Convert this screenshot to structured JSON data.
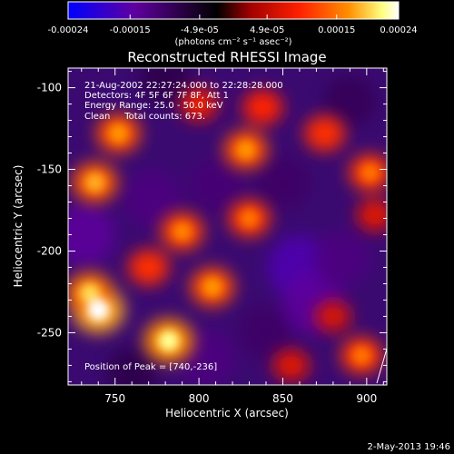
{
  "colorbar": {
    "tick_labels": [
      "-0.00024",
      "-0.00015",
      "-4.9e-05",
      "4.9e-05",
      "0.00015",
      "0.00024"
    ],
    "tick_values": [
      -0.00024,
      -0.00015,
      -4.9e-05,
      4.9e-05,
      0.00015,
      0.00024
    ],
    "range": [
      -0.00024,
      0.00024
    ],
    "units": "(photons cm⁻² s⁻¹ asec⁻²)",
    "colormap": [
      "#0000ff",
      "#6000a0",
      "#000000",
      "#a00000",
      "#ff2000",
      "#ff9000",
      "#ffff80",
      "#ffffff"
    ]
  },
  "chart_data": {
    "type": "heatmap",
    "title": "Reconstructed RHESSI Image",
    "xlabel": "Heliocentric X (arcsec)",
    "ylabel": "Heliocentric Y (arcsec)",
    "xlim": [
      722,
      912
    ],
    "ylim": [
      -282,
      -88
    ],
    "x_ticks": [
      750,
      800,
      850,
      900
    ],
    "x_tick_labels": [
      "750",
      "800",
      "850",
      "900"
    ],
    "y_ticks": [
      -100,
      -150,
      -200,
      -250
    ],
    "y_tick_labels": [
      "-100",
      "-150",
      "-200",
      "-250"
    ],
    "annotations": [
      "21-Aug-2002 22:27:24.000 to 22:28:28.000",
      "Detectors: 4F 5F 6F 7F 8F, Att 1",
      "Energy Range: 25.0 - 50.0 keV",
      "Clean     Total counts: 673."
    ],
    "peak_label": "Position of Peak = [740,-236]",
    "peak_position": [
      740,
      -236
    ],
    "bright_sources": [
      {
        "x": 740,
        "y": -236,
        "value": 0.00024
      },
      {
        "x": 735,
        "y": -226,
        "value": 0.0002
      },
      {
        "x": 782,
        "y": -255,
        "value": 0.00022
      },
      {
        "x": 738,
        "y": -158,
        "value": 0.00018
      },
      {
        "x": 752,
        "y": -128,
        "value": 0.00017
      },
      {
        "x": 790,
        "y": -188,
        "value": 0.00016
      },
      {
        "x": 808,
        "y": -222,
        "value": 0.00017
      },
      {
        "x": 830,
        "y": -180,
        "value": 0.00015
      },
      {
        "x": 828,
        "y": -138,
        "value": 0.00017
      },
      {
        "x": 838,
        "y": -112,
        "value": 0.00013
      },
      {
        "x": 875,
        "y": -128,
        "value": 0.00014
      },
      {
        "x": 902,
        "y": -152,
        "value": 0.00015
      },
      {
        "x": 897,
        "y": -264,
        "value": 0.00015
      },
      {
        "x": 905,
        "y": -178,
        "value": 0.0001
      },
      {
        "x": 880,
        "y": -240,
        "value": 9e-05
      },
      {
        "x": 855,
        "y": -270,
        "value": 0.0001
      },
      {
        "x": 800,
        "y": -110,
        "value": 0.00011
      },
      {
        "x": 770,
        "y": -210,
        "value": 0.00014
      }
    ],
    "dark_sources": [
      {
        "x": 732,
        "y": -190,
        "value": -0.00014
      },
      {
        "x": 772,
        "y": -168,
        "value": -0.00012
      },
      {
        "x": 860,
        "y": -210,
        "value": -0.00016
      },
      {
        "x": 868,
        "y": -232,
        "value": -0.00014
      },
      {
        "x": 810,
        "y": -160,
        "value": -0.00011
      },
      {
        "x": 885,
        "y": -205,
        "value": -0.00012
      },
      {
        "x": 805,
        "y": -265,
        "value": -0.00012
      },
      {
        "x": 840,
        "y": -250,
        "value": -0.0001
      },
      {
        "x": 890,
        "y": -108,
        "value": -9e-05
      },
      {
        "x": 780,
        "y": -95,
        "value": -8e-05
      },
      {
        "x": 760,
        "y": -275,
        "value": -8e-05
      },
      {
        "x": 850,
        "y": -158,
        "value": -0.0001
      }
    ]
  },
  "timestamp": "2-May-2013 19:46"
}
